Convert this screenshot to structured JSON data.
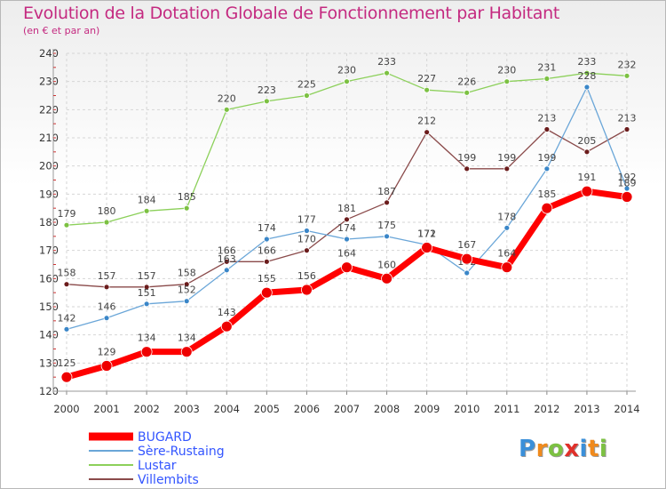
{
  "header": {
    "title": "Evolution de la Dotation Globale de Fonctionnement par Habitant",
    "subtitle": "(en € et par an)"
  },
  "logo": {
    "text": "Proxiti",
    "letters": [
      "P",
      "r",
      "o",
      "x",
      "i",
      "t",
      "i"
    ],
    "colors": [
      "#3a8fd9",
      "#f08a1c",
      "#7cc142",
      "#e0302a",
      "#3a8fd9",
      "#f08a1c",
      "#7cc142"
    ]
  },
  "chart_data": {
    "type": "line",
    "title": "Evolution de la Dotation Globale de Fonctionnement par Habitant",
    "subtitle": "(en € et par an)",
    "xlabel": "",
    "ylabel": "",
    "x": [
      2000,
      2001,
      2002,
      2003,
      2004,
      2005,
      2006,
      2007,
      2008,
      2009,
      2010,
      2011,
      2012,
      2013,
      2014
    ],
    "ylim": [
      120,
      240
    ],
    "yticks": [
      120,
      130,
      140,
      150,
      160,
      170,
      180,
      190,
      200,
      210,
      220,
      230,
      240
    ],
    "grid": true,
    "legend_position": "bottom-left",
    "series": [
      {
        "name": "Lustar",
        "color": "#8cd05a",
        "marker_color": "#7cc142",
        "width": 1.3,
        "marker_r": 3,
        "values": [
          179,
          180,
          184,
          185,
          220,
          223,
          225,
          230,
          233,
          227,
          226,
          230,
          231,
          233,
          232
        ]
      },
      {
        "name": "Villembits",
        "color": "#8a4a4a",
        "marker_color": "#6b1c1c",
        "width": 1.3,
        "marker_r": 3,
        "values": [
          158,
          157,
          157,
          158,
          166,
          166,
          170,
          181,
          187,
          212,
          199,
          199,
          213,
          205,
          213
        ]
      },
      {
        "name": "Sère-Rustaing",
        "color": "#6aa6d8",
        "marker_color": "#3a86c8",
        "width": 1.3,
        "marker_r": 3,
        "values": [
          142,
          146,
          151,
          152,
          163,
          174,
          177,
          174,
          175,
          172,
          162,
          178,
          199,
          228,
          192
        ]
      },
      {
        "name": "BUGARD",
        "color": "#ff0000",
        "marker_color": "#ee0000",
        "width": 7,
        "marker_r": 6,
        "values": [
          125,
          129,
          134,
          134,
          143,
          155,
          156,
          164,
          160,
          171,
          167,
          164,
          185,
          191,
          189
        ]
      }
    ],
    "legend": [
      {
        "name": "BUGARD",
        "color": "#ff0000"
      },
      {
        "name": "Sère-Rustaing",
        "color": "#6aa6d8"
      },
      {
        "name": "Lustar",
        "color": "#8cd05a"
      },
      {
        "name": "Villembits",
        "color": "#8a4a4a"
      }
    ]
  }
}
